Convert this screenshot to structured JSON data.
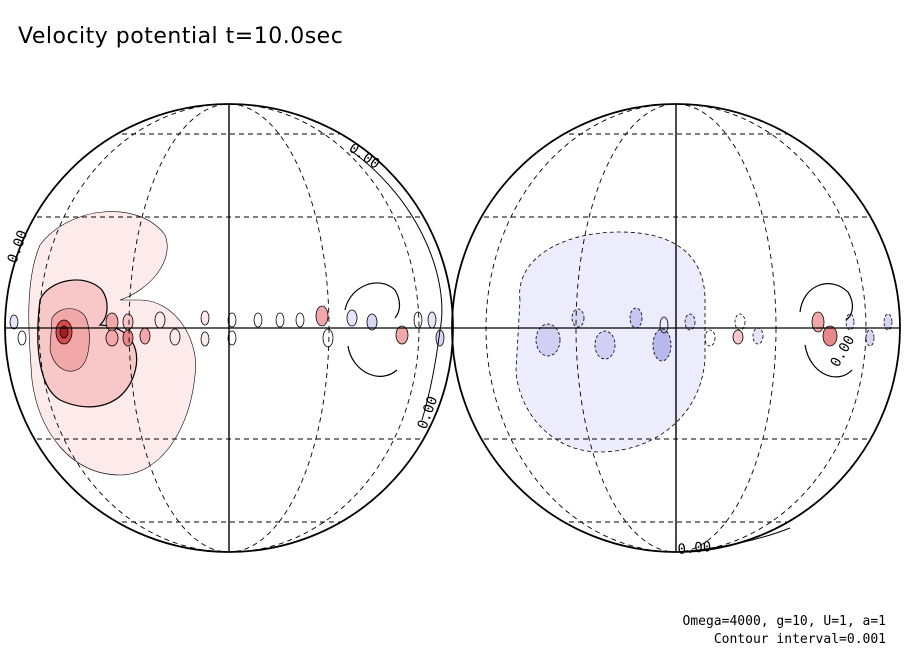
{
  "title": "Velocity potential t=10.0sec",
  "footer": {
    "params": "Omega=4000, g=10, U=1, a=1",
    "interval": "Contour interval=0.001"
  },
  "chart_data": {
    "type": "contour",
    "projection": "orthographic (two hemispheres)",
    "variable": "Velocity potential",
    "time": "t=10.0sec",
    "parameters": {
      "Omega": 4000,
      "g": 10,
      "U": 1,
      "a": 1
    },
    "contour_interval": 0.001,
    "contour_labels": [
      "0.00",
      "0.00",
      "0.00",
      "0.00",
      "0.00"
    ],
    "grid": true,
    "colors": {
      "positive": "#e06060",
      "negative": "#6060e0"
    },
    "panels": [
      {
        "name": "left hemisphere",
        "dominant_sign": "positive"
      },
      {
        "name": "right hemisphere",
        "dominant_sign": "negative"
      }
    ]
  }
}
